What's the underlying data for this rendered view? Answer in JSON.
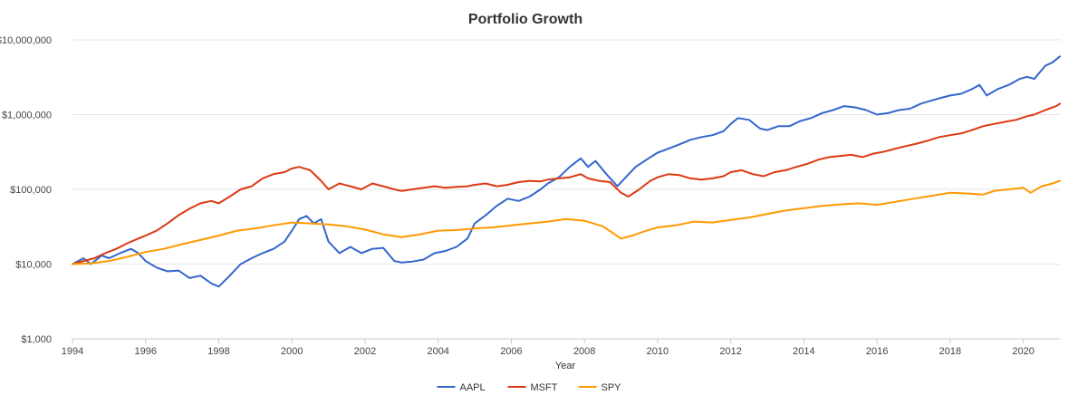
{
  "chart_data": {
    "type": "line",
    "title": "Portfolio Growth",
    "xlabel": "Year",
    "ylabel": "",
    "yscale": "log",
    "ylim": [
      1000,
      10000000
    ],
    "xlim": [
      1994.0,
      2021.0
    ],
    "grid": true,
    "legend_position": "bottom-center",
    "y_ticks": [
      {
        "value": 1000,
        "label": "$1,000"
      },
      {
        "value": 10000,
        "label": "$10,000"
      },
      {
        "value": 100000,
        "label": "$100,000"
      },
      {
        "value": 1000000,
        "label": "$1,000,000"
      },
      {
        "value": 10000000,
        "label": "$10,000,000"
      }
    ],
    "x_ticks": [
      {
        "value": 1994,
        "label": "1994"
      },
      {
        "value": 1996,
        "label": "1996"
      },
      {
        "value": 1998,
        "label": "1998"
      },
      {
        "value": 2000,
        "label": "2000"
      },
      {
        "value": 2002,
        "label": "2002"
      },
      {
        "value": 2004,
        "label": "2004"
      },
      {
        "value": 2006,
        "label": "2006"
      },
      {
        "value": 2008,
        "label": "2008"
      },
      {
        "value": 2010,
        "label": "2010"
      },
      {
        "value": 2012,
        "label": "2012"
      },
      {
        "value": 2014,
        "label": "2014"
      },
      {
        "value": 2016,
        "label": "2016"
      },
      {
        "value": 2018,
        "label": "2018"
      },
      {
        "value": 2020,
        "label": "2020"
      }
    ],
    "series": [
      {
        "name": "AAPL",
        "color": "#3366cc",
        "x": [
          1994.0,
          1994.3,
          1994.5,
          1994.8,
          1995.0,
          1995.3,
          1995.6,
          1995.8,
          1996.0,
          1996.3,
          1996.6,
          1996.9,
          1997.2,
          1997.5,
          1997.8,
          1998.0,
          1998.3,
          1998.6,
          1998.9,
          1999.2,
          1999.5,
          1999.8,
          2000.0,
          2000.2,
          2000.4,
          2000.6,
          2000.8,
          2001.0,
          2001.3,
          2001.6,
          2001.9,
          2002.2,
          2002.5,
          2002.8,
          2003.0,
          2003.3,
          2003.6,
          2003.9,
          2004.2,
          2004.5,
          2004.8,
          2005.0,
          2005.3,
          2005.6,
          2005.9,
          2006.2,
          2006.5,
          2006.8,
          2007.0,
          2007.3,
          2007.6,
          2007.9,
          2008.1,
          2008.3,
          2008.6,
          2008.9,
          2009.1,
          2009.4,
          2009.7,
          2010.0,
          2010.3,
          2010.6,
          2010.9,
          2011.2,
          2011.5,
          2011.8,
          2012.0,
          2012.2,
          2012.5,
          2012.8,
          2013.0,
          2013.3,
          2013.6,
          2013.9,
          2014.2,
          2014.5,
          2014.8,
          2015.1,
          2015.4,
          2015.7,
          2016.0,
          2016.3,
          2016.6,
          2016.9,
          2017.2,
          2017.5,
          2017.8,
          2018.0,
          2018.3,
          2018.6,
          2018.8,
          2019.0,
          2019.3,
          2019.6,
          2019.9,
          2020.1,
          2020.3,
          2020.6,
          2020.8,
          2021.0
        ],
        "values": [
          10000,
          12000,
          10000,
          13000,
          12000,
          14000,
          16000,
          14000,
          11000,
          9000,
          8000,
          8200,
          6500,
          7000,
          5500,
          5000,
          7000,
          10000,
          12000,
          14000,
          16000,
          20000,
          28000,
          40000,
          44000,
          35000,
          40000,
          20000,
          14000,
          17000,
          14000,
          16000,
          16500,
          11000,
          10500,
          10800,
          11500,
          14000,
          15000,
          17000,
          22000,
          35000,
          45000,
          60000,
          75000,
          70000,
          80000,
          100000,
          120000,
          145000,
          200000,
          260000,
          200000,
          240000,
          160000,
          110000,
          140000,
          200000,
          250000,
          310000,
          350000,
          400000,
          460000,
          500000,
          530000,
          600000,
          750000,
          900000,
          850000,
          650000,
          620000,
          700000,
          700000,
          820000,
          900000,
          1050000,
          1150000,
          1300000,
          1250000,
          1150000,
          1000000,
          1050000,
          1150000,
          1200000,
          1400000,
          1550000,
          1700000,
          1800000,
          1900000,
          2200000,
          2500000,
          1800000,
          2200000,
          2500000,
          3000000,
          3200000,
          3000000,
          4500000,
          5000000,
          6000000
        ]
      },
      {
        "name": "MSFT",
        "color": "#dc3912",
        "x": [
          1994.0,
          1994.3,
          1994.6,
          1994.9,
          1995.2,
          1995.5,
          1995.8,
          1996.0,
          1996.3,
          1996.6,
          1996.9,
          1997.2,
          1997.5,
          1997.8,
          1998.0,
          1998.3,
          1998.6,
          1998.9,
          1999.2,
          1999.5,
          1999.8,
          2000.0,
          2000.2,
          2000.5,
          2000.8,
          2001.0,
          2001.3,
          2001.6,
          2001.9,
          2002.2,
          2002.5,
          2002.8,
          2003.0,
          2003.3,
          2003.6,
          2003.9,
          2004.2,
          2004.5,
          2004.8,
          2005.0,
          2005.3,
          2005.6,
          2005.9,
          2006.2,
          2006.5,
          2006.8,
          2007.0,
          2007.3,
          2007.6,
          2007.9,
          2008.1,
          2008.4,
          2008.7,
          2009.0,
          2009.2,
          2009.5,
          2009.8,
          2010.0,
          2010.3,
          2010.6,
          2010.9,
          2011.2,
          2011.5,
          2011.8,
          2012.0,
          2012.3,
          2012.6,
          2012.9,
          2013.2,
          2013.5,
          2013.8,
          2014.1,
          2014.4,
          2014.7,
          2015.0,
          2015.3,
          2015.6,
          2015.9,
          2016.2,
          2016.5,
          2016.8,
          2017.1,
          2017.4,
          2017.7,
          2018.0,
          2018.3,
          2018.6,
          2018.9,
          2019.2,
          2019.5,
          2019.8,
          2020.1,
          2020.3,
          2020.6,
          2020.9,
          2021.0
        ],
        "values": [
          10000,
          11000,
          12000,
          14000,
          16000,
          19000,
          22000,
          24000,
          28000,
          35000,
          45000,
          55000,
          65000,
          70000,
          65000,
          80000,
          100000,
          110000,
          140000,
          160000,
          170000,
          190000,
          200000,
          180000,
          130000,
          100000,
          120000,
          110000,
          100000,
          120000,
          110000,
          100000,
          95000,
          100000,
          105000,
          110000,
          105000,
          108000,
          110000,
          115000,
          120000,
          110000,
          115000,
          125000,
          130000,
          128000,
          135000,
          140000,
          145000,
          160000,
          140000,
          130000,
          125000,
          90000,
          80000,
          100000,
          130000,
          145000,
          160000,
          155000,
          140000,
          135000,
          140000,
          150000,
          170000,
          180000,
          160000,
          150000,
          170000,
          180000,
          200000,
          220000,
          250000,
          270000,
          280000,
          290000,
          270000,
          300000,
          320000,
          350000,
          380000,
          410000,
          450000,
          500000,
          530000,
          560000,
          620000,
          700000,
          750000,
          800000,
          850000,
          950000,
          1000000,
          1150000,
          1300000,
          1400000
        ]
      },
      {
        "name": "SPY",
        "color": "#ff9900",
        "x": [
          1994.0,
          1994.5,
          1995.0,
          1995.5,
          1996.0,
          1996.5,
          1997.0,
          1997.5,
          1998.0,
          1998.5,
          1999.0,
          1999.5,
          2000.0,
          2000.5,
          2001.0,
          2001.5,
          2002.0,
          2002.5,
          2003.0,
          2003.5,
          2004.0,
          2004.5,
          2005.0,
          2005.5,
          2006.0,
          2006.5,
          2007.0,
          2007.5,
          2008.0,
          2008.5,
          2009.0,
          2009.3,
          2009.7,
          2010.0,
          2010.5,
          2011.0,
          2011.5,
          2012.0,
          2012.5,
          2013.0,
          2013.5,
          2014.0,
          2014.5,
          2015.0,
          2015.5,
          2016.0,
          2016.5,
          2017.0,
          2017.5,
          2018.0,
          2018.5,
          2018.9,
          2019.2,
          2019.6,
          2020.0,
          2020.2,
          2020.5,
          2020.8,
          2021.0
        ],
        "values": [
          10000,
          10200,
          11000,
          12500,
          14500,
          16000,
          18500,
          21000,
          24000,
          28000,
          30000,
          33000,
          36000,
          35000,
          34000,
          32000,
          29000,
          25000,
          23000,
          25000,
          28000,
          28500,
          30000,
          31000,
          33000,
          35000,
          37000,
          40000,
          38000,
          32000,
          22000,
          24000,
          28000,
          31000,
          33000,
          37000,
          36000,
          39000,
          42000,
          47000,
          52000,
          56000,
          60000,
          63000,
          65000,
          62000,
          68000,
          75000,
          82000,
          90000,
          88000,
          85000,
          95000,
          100000,
          105000,
          90000,
          110000,
          120000,
          130000
        ]
      }
    ]
  }
}
